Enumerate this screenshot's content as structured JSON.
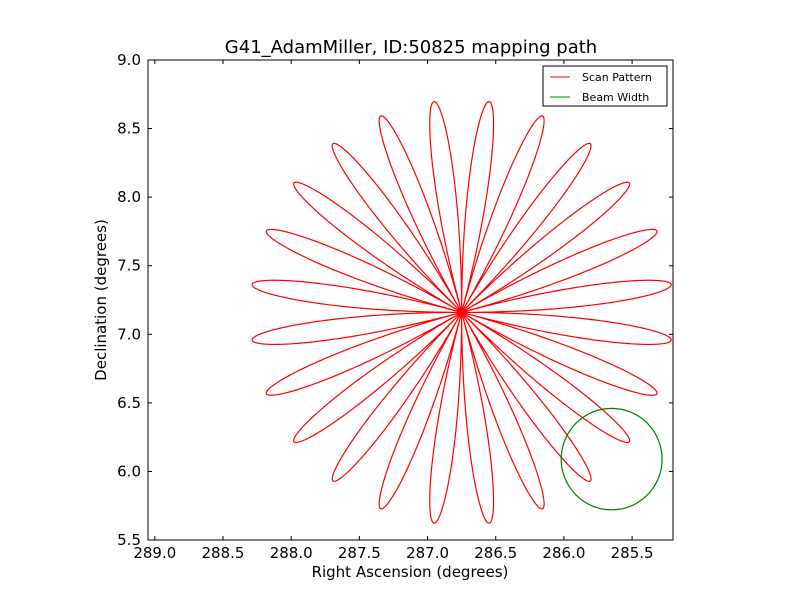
{
  "chart_data": {
    "type": "line",
    "title": "G41_AdamMiller, ID:50825 mapping path",
    "xlabel": "Right Ascension (degrees)",
    "ylabel": "Declination (degrees)",
    "xlim": [
      289.05,
      285.2
    ],
    "ylim": [
      5.5,
      9.0
    ],
    "x_inverted": true,
    "xticks": [
      289.0,
      288.5,
      288.0,
      287.5,
      287.0,
      286.5,
      286.0,
      285.5
    ],
    "xtick_labels": [
      "289.0",
      "288.5",
      "288.0",
      "287.5",
      "287.0",
      "286.5",
      "286.0",
      "285.5"
    ],
    "yticks": [
      5.5,
      6.0,
      6.5,
      7.0,
      7.5,
      8.0,
      8.5,
      9.0
    ],
    "ytick_labels": [
      "5.5",
      "6.0",
      "6.5",
      "7.0",
      "7.5",
      "8.0",
      "8.5",
      "9.0"
    ],
    "grid": false,
    "legend_position": "top-right",
    "series": [
      {
        "name": "Scan Pattern",
        "color": "#ff0000",
        "shape": "rosette",
        "center": [
          286.75,
          7.16
        ],
        "petals": 24,
        "radius_deg": 1.55
      },
      {
        "name": "Beam Width",
        "color": "#008000",
        "shape": "circle",
        "center": [
          285.65,
          6.09
        ],
        "radius_deg": 0.37
      }
    ]
  }
}
